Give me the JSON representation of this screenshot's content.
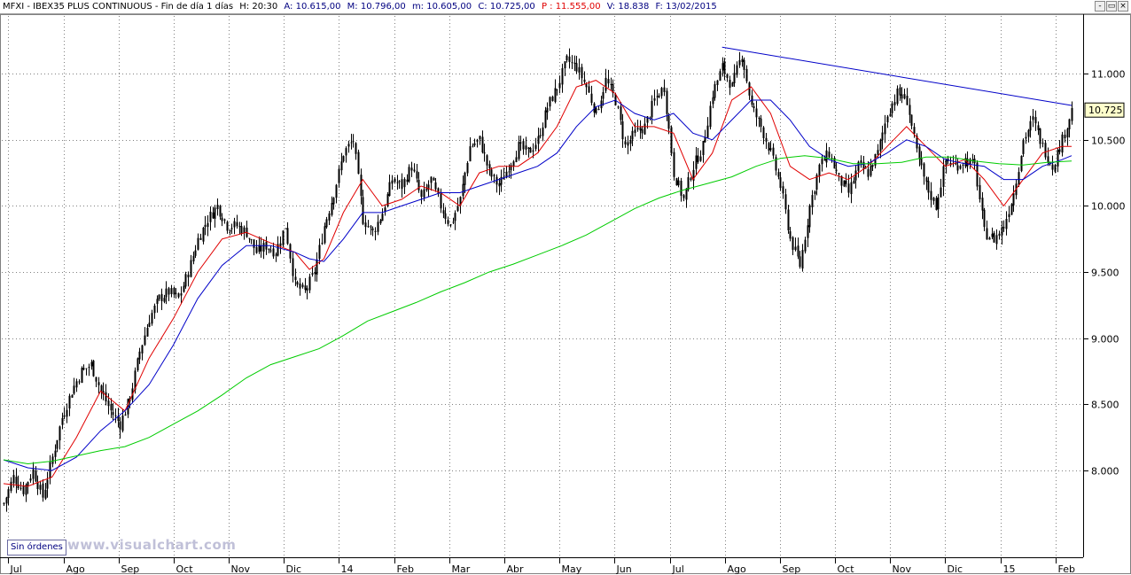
{
  "header": {
    "title": "MFXI - IBEX35 PLUS CONTINUOUS - Fin de día 1 días",
    "hour": "H: 20:30",
    "open": "A: 10.615,00",
    "high": "M: 10.796,00",
    "low": "m: 10.605,00",
    "close": "C: 10.725,00",
    "p": "P : 11.555,00",
    "volume": "V: 18.838",
    "date": "F: 13/02/2015"
  },
  "window_controls": {
    "minimize": "-",
    "restore": "▭",
    "close": "×"
  },
  "orders_badge": "Sin órdenes",
  "watermark": "www.visualchart.com",
  "colors": {
    "candles": "#000000",
    "ma_short": "#e00000",
    "ma_mid": "#0000c8",
    "ma_long": "#00cc00",
    "trendline": "#0000c8",
    "grid": "#808080",
    "last_price_box": "#ffffcc"
  },
  "chart_data": {
    "type": "candlestick",
    "instrument": "IBEX35 PLUS CONTINUOUS",
    "x_tick_labels": [
      "Jul",
      "Ago",
      "Sep",
      "Oct",
      "Nov",
      "Dic",
      "14",
      "Feb",
      "Mar",
      "Abr",
      "May",
      "Jun",
      "Jul",
      "Ago",
      "Sep",
      "Oct",
      "Nov",
      "Dic",
      "15",
      "Feb"
    ],
    "y_tick_labels": [
      "8.000",
      "8.500",
      "9.000",
      "9.500",
      "10.000",
      "10.500",
      "11.000"
    ],
    "y_ticks": [
      8000,
      8500,
      9000,
      9500,
      10000,
      10500,
      11000
    ],
    "ylim": [
      7350,
      11450
    ],
    "last_price": 10725,
    "last_price_label": "10.725",
    "grid": true,
    "series": [
      {
        "role": "price",
        "points": [
          [
            0,
            7750
          ],
          [
            4,
            7950
          ],
          [
            8,
            7850
          ],
          [
            12,
            8000
          ],
          [
            16,
            7800
          ],
          [
            20,
            8100
          ],
          [
            24,
            8400
          ],
          [
            28,
            8600
          ],
          [
            32,
            8750
          ],
          [
            36,
            8800
          ],
          [
            40,
            8600
          ],
          [
            44,
            8450
          ],
          [
            48,
            8350
          ],
          [
            52,
            8550
          ],
          [
            56,
            8900
          ],
          [
            60,
            9150
          ],
          [
            64,
            9300
          ],
          [
            68,
            9350
          ],
          [
            72,
            9300
          ],
          [
            76,
            9500
          ],
          [
            80,
            9750
          ],
          [
            84,
            9900
          ],
          [
            88,
            10000
          ],
          [
            92,
            9850
          ],
          [
            96,
            9850
          ],
          [
            100,
            9800
          ],
          [
            104,
            9650
          ],
          [
            108,
            9700
          ],
          [
            112,
            9650
          ],
          [
            116,
            9850
          ],
          [
            120,
            9400
          ],
          [
            124,
            9350
          ],
          [
            128,
            9500
          ],
          [
            132,
            9850
          ],
          [
            136,
            10100
          ],
          [
            140,
            10400
          ],
          [
            144,
            10500
          ],
          [
            148,
            9900
          ],
          [
            152,
            9800
          ],
          [
            156,
            9950
          ],
          [
            160,
            10200
          ],
          [
            164,
            10150
          ],
          [
            168,
            10300
          ],
          [
            172,
            10050
          ],
          [
            176,
            10200
          ],
          [
            180,
            10000
          ],
          [
            184,
            9850
          ],
          [
            188,
            10050
          ],
          [
            192,
            10450
          ],
          [
            196,
            10500
          ],
          [
            200,
            10250
          ],
          [
            204,
            10150
          ],
          [
            208,
            10300
          ],
          [
            212,
            10450
          ],
          [
            216,
            10400
          ],
          [
            220,
            10500
          ],
          [
            224,
            10750
          ],
          [
            228,
            10900
          ],
          [
            232,
            11100
          ],
          [
            236,
            11050
          ],
          [
            240,
            10900
          ],
          [
            244,
            10700
          ],
          [
            248,
            10950
          ],
          [
            252,
            10800
          ],
          [
            256,
            10450
          ],
          [
            260,
            10550
          ],
          [
            264,
            10600
          ],
          [
            268,
            10800
          ],
          [
            272,
            10900
          ],
          [
            276,
            10250
          ],
          [
            280,
            10050
          ],
          [
            284,
            10300
          ],
          [
            288,
            10450
          ],
          [
            292,
            10850
          ],
          [
            296,
            11050
          ],
          [
            300,
            10900
          ],
          [
            304,
            11150
          ],
          [
            308,
            10750
          ],
          [
            312,
            10600
          ],
          [
            316,
            10400
          ],
          [
            320,
            10150
          ],
          [
            324,
            9750
          ],
          [
            328,
            9550
          ],
          [
            332,
            10000
          ],
          [
            336,
            10300
          ],
          [
            340,
            10400
          ],
          [
            344,
            10200
          ],
          [
            348,
            10100
          ],
          [
            352,
            10300
          ],
          [
            356,
            10250
          ],
          [
            360,
            10400
          ],
          [
            364,
            10700
          ],
          [
            368,
            10850
          ],
          [
            372,
            10800
          ],
          [
            376,
            10400
          ],
          [
            380,
            10150
          ],
          [
            384,
            10000
          ],
          [
            388,
            10350
          ],
          [
            392,
            10300
          ],
          [
            396,
            10350
          ],
          [
            400,
            10300
          ],
          [
            404,
            9800
          ],
          [
            408,
            9750
          ],
          [
            412,
            9850
          ],
          [
            416,
            10100
          ],
          [
            420,
            10500
          ],
          [
            424,
            10650
          ],
          [
            428,
            10450
          ],
          [
            432,
            10300
          ],
          [
            436,
            10500
          ],
          [
            440,
            10725
          ]
        ]
      },
      {
        "role": "ma_short",
        "points": [
          [
            0,
            7900
          ],
          [
            10,
            7880
          ],
          [
            20,
            7950
          ],
          [
            30,
            8250
          ],
          [
            40,
            8600
          ],
          [
            50,
            8450
          ],
          [
            60,
            8850
          ],
          [
            70,
            9150
          ],
          [
            80,
            9500
          ],
          [
            90,
            9750
          ],
          [
            100,
            9800
          ],
          [
            110,
            9720
          ],
          [
            120,
            9650
          ],
          [
            126,
            9520
          ],
          [
            132,
            9600
          ],
          [
            140,
            9950
          ],
          [
            148,
            10200
          ],
          [
            156,
            10000
          ],
          [
            164,
            10050
          ],
          [
            172,
            10150
          ],
          [
            180,
            10100
          ],
          [
            188,
            10000
          ],
          [
            196,
            10250
          ],
          [
            204,
            10300
          ],
          [
            212,
            10300
          ],
          [
            220,
            10400
          ],
          [
            228,
            10600
          ],
          [
            236,
            10900
          ],
          [
            244,
            10950
          ],
          [
            252,
            10850
          ],
          [
            260,
            10600
          ],
          [
            268,
            10600
          ],
          [
            276,
            10550
          ],
          [
            284,
            10200
          ],
          [
            292,
            10400
          ],
          [
            300,
            10800
          ],
          [
            308,
            10900
          ],
          [
            316,
            10700
          ],
          [
            324,
            10300
          ],
          [
            332,
            10200
          ],
          [
            340,
            10250
          ],
          [
            348,
            10200
          ],
          [
            356,
            10300
          ],
          [
            364,
            10450
          ],
          [
            372,
            10600
          ],
          [
            380,
            10450
          ],
          [
            388,
            10300
          ],
          [
            396,
            10350
          ],
          [
            404,
            10200
          ],
          [
            412,
            10000
          ],
          [
            420,
            10200
          ],
          [
            428,
            10400
          ],
          [
            436,
            10450
          ],
          [
            440,
            10450
          ]
        ]
      },
      {
        "role": "ma_mid",
        "points": [
          [
            0,
            8080
          ],
          [
            10,
            8020
          ],
          [
            20,
            8000
          ],
          [
            30,
            8100
          ],
          [
            40,
            8300
          ],
          [
            50,
            8450
          ],
          [
            60,
            8650
          ],
          [
            70,
            8950
          ],
          [
            80,
            9300
          ],
          [
            90,
            9550
          ],
          [
            100,
            9700
          ],
          [
            110,
            9700
          ],
          [
            120,
            9650
          ],
          [
            126,
            9600
          ],
          [
            132,
            9580
          ],
          [
            140,
            9750
          ],
          [
            148,
            9950
          ],
          [
            156,
            9950
          ],
          [
            164,
            10000
          ],
          [
            172,
            10050
          ],
          [
            180,
            10100
          ],
          [
            188,
            10100
          ],
          [
            196,
            10150
          ],
          [
            204,
            10200
          ],
          [
            212,
            10250
          ],
          [
            220,
            10300
          ],
          [
            228,
            10400
          ],
          [
            236,
            10600
          ],
          [
            244,
            10750
          ],
          [
            252,
            10800
          ],
          [
            260,
            10700
          ],
          [
            268,
            10650
          ],
          [
            276,
            10700
          ],
          [
            284,
            10550
          ],
          [
            292,
            10500
          ],
          [
            300,
            10650
          ],
          [
            308,
            10800
          ],
          [
            316,
            10800
          ],
          [
            324,
            10650
          ],
          [
            332,
            10450
          ],
          [
            340,
            10350
          ],
          [
            348,
            10300
          ],
          [
            356,
            10320
          ],
          [
            364,
            10400
          ],
          [
            372,
            10500
          ],
          [
            380,
            10450
          ],
          [
            388,
            10350
          ],
          [
            396,
            10320
          ],
          [
            404,
            10300
          ],
          [
            412,
            10200
          ],
          [
            420,
            10200
          ],
          [
            428,
            10300
          ],
          [
            436,
            10350
          ],
          [
            440,
            10380
          ]
        ]
      },
      {
        "role": "ma_long",
        "points": [
          [
            0,
            8080
          ],
          [
            10,
            8050
          ],
          [
            20,
            8070
          ],
          [
            30,
            8110
          ],
          [
            40,
            8150
          ],
          [
            50,
            8180
          ],
          [
            60,
            8250
          ],
          [
            70,
            8350
          ],
          [
            80,
            8450
          ],
          [
            90,
            8570
          ],
          [
            100,
            8700
          ],
          [
            110,
            8800
          ],
          [
            120,
            8860
          ],
          [
            130,
            8920
          ],
          [
            140,
            9020
          ],
          [
            150,
            9130
          ],
          [
            160,
            9200
          ],
          [
            170,
            9270
          ],
          [
            180,
            9350
          ],
          [
            190,
            9420
          ],
          [
            200,
            9500
          ],
          [
            210,
            9560
          ],
          [
            220,
            9630
          ],
          [
            230,
            9700
          ],
          [
            240,
            9780
          ],
          [
            250,
            9880
          ],
          [
            260,
            9980
          ],
          [
            270,
            10060
          ],
          [
            280,
            10120
          ],
          [
            290,
            10170
          ],
          [
            300,
            10220
          ],
          [
            310,
            10300
          ],
          [
            320,
            10360
          ],
          [
            330,
            10380
          ],
          [
            340,
            10360
          ],
          [
            350,
            10320
          ],
          [
            360,
            10320
          ],
          [
            370,
            10330
          ],
          [
            380,
            10370
          ],
          [
            390,
            10370
          ],
          [
            400,
            10340
          ],
          [
            410,
            10320
          ],
          [
            420,
            10310
          ],
          [
            430,
            10330
          ],
          [
            440,
            10340
          ]
        ]
      },
      {
        "role": "trendline",
        "points": [
          [
            296,
            11200
          ],
          [
            440,
            10760
          ]
        ]
      }
    ]
  }
}
